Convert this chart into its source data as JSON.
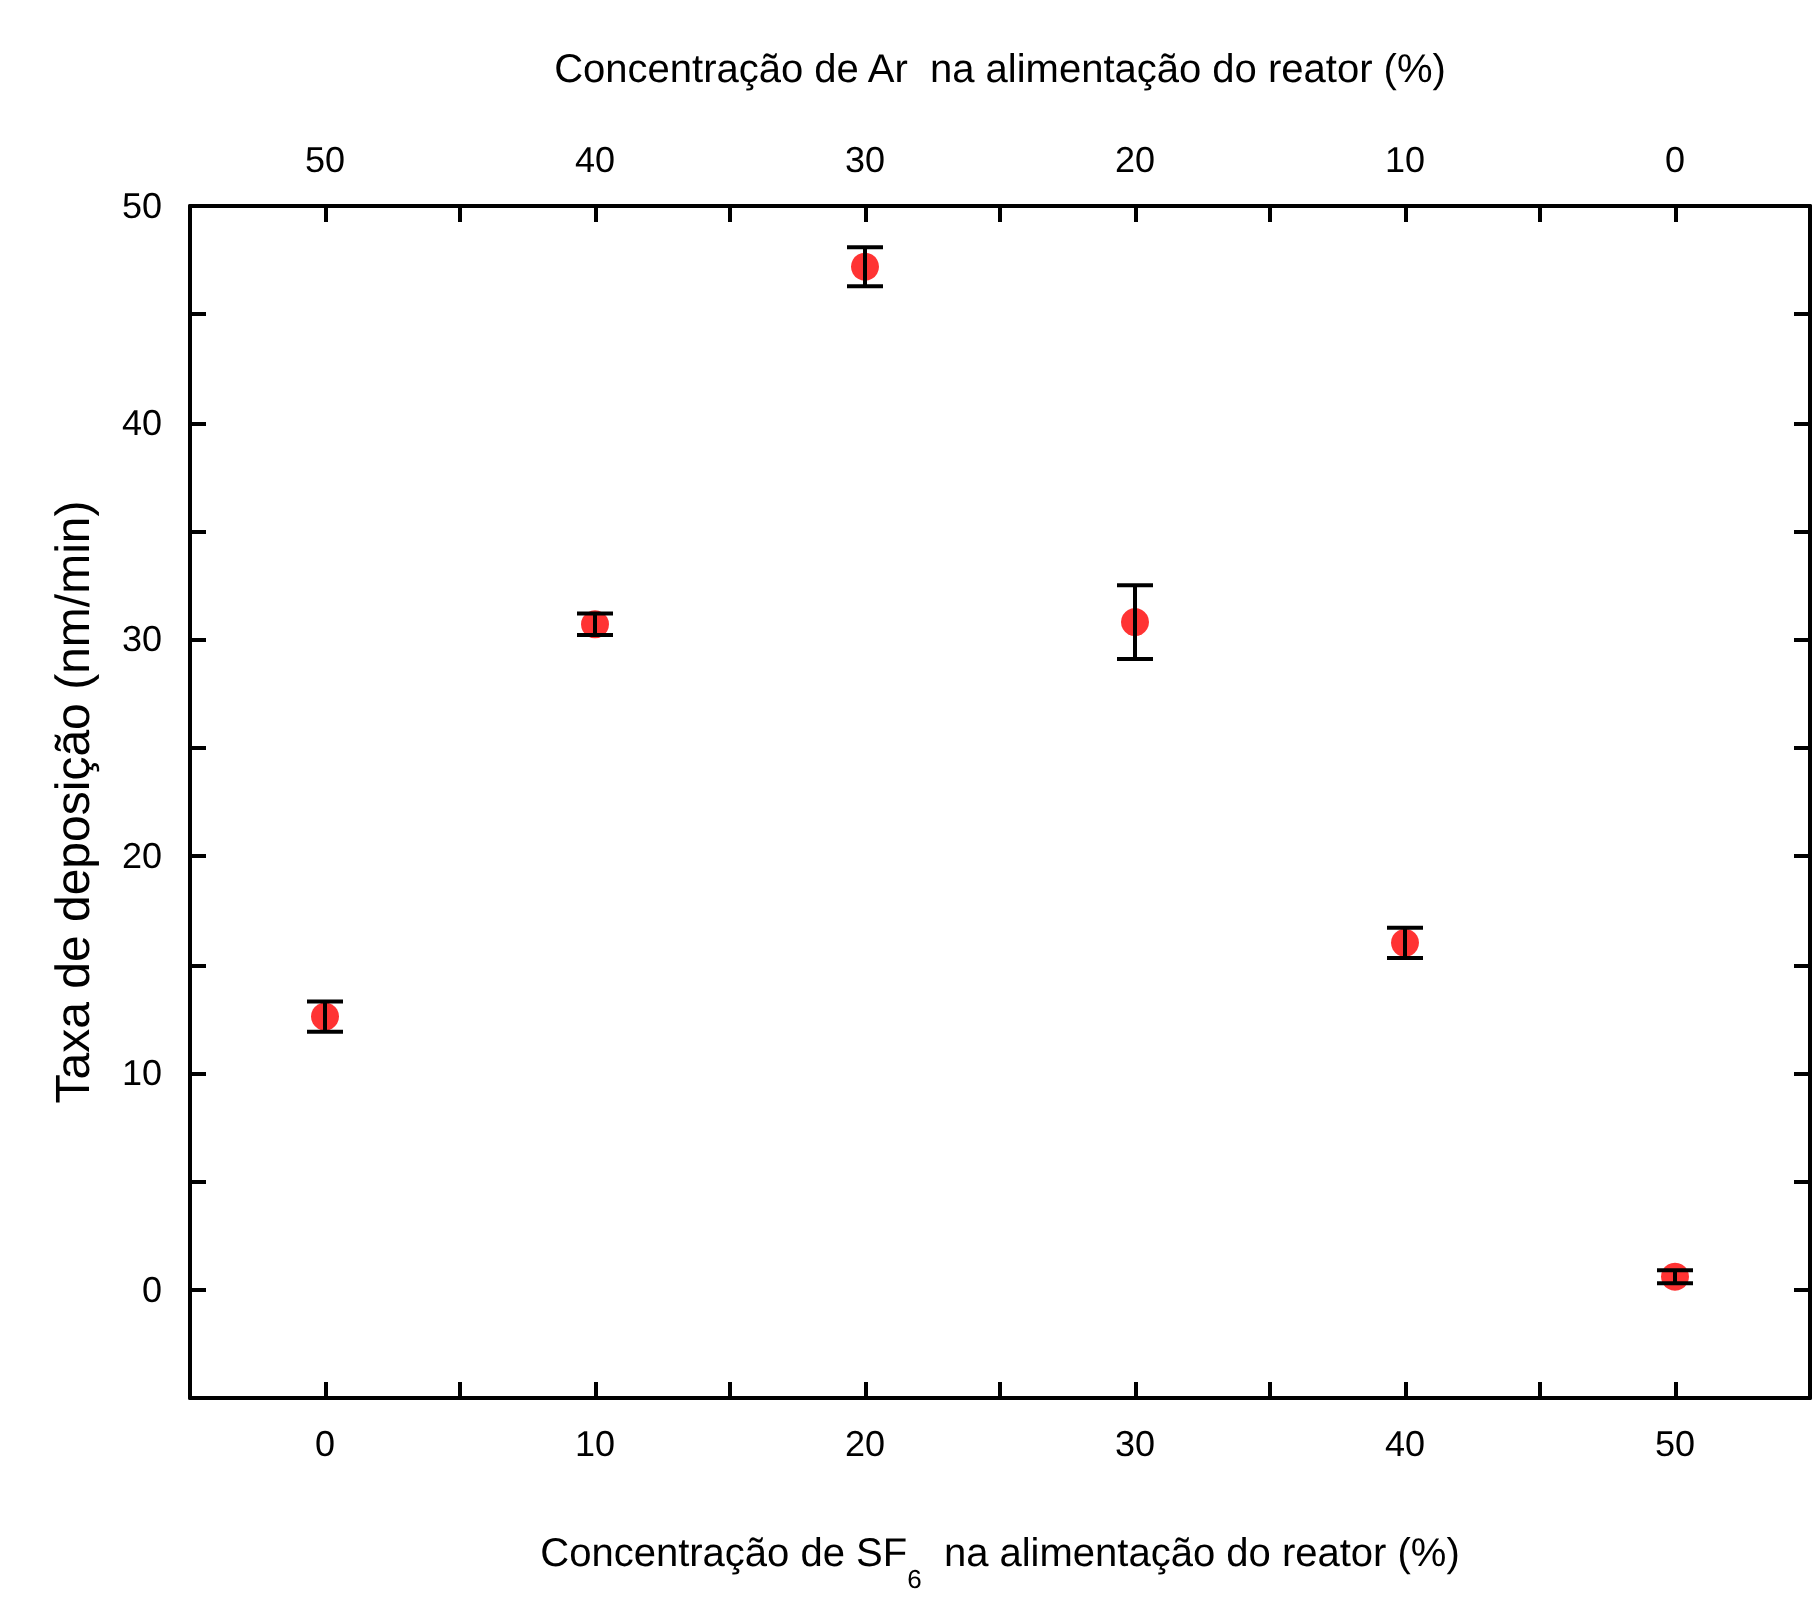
{
  "chart_data": {
    "type": "scatter",
    "xlabel": "Concentração de SF$_{6}$  na alimentação do reator (%)",
    "x2label": "Concentração de Ar  na alimentação do reator (%)",
    "ylabel": "Taxa de deposição (nm/min)",
    "x": [
      0,
      10,
      20,
      30,
      40,
      50
    ],
    "series": [
      {
        "color": "#ff0000",
        "values": [
          12.6,
          30.7,
          47.2,
          30.8,
          16.0,
          0.6
        ],
        "errors": [
          0.7,
          0.5,
          0.9,
          1.7,
          0.7,
          0.3
        ]
      }
    ],
    "marker": "circle",
    "xlim": [
      -5,
      55
    ],
    "xticks": [
      0,
      {
        "value": 5,
        "label": null
      },
      10,
      {
        "value": 15,
        "label": null
      },
      20,
      {
        "value": 25,
        "label": null
      },
      30,
      {
        "value": 35,
        "label": null
      },
      40,
      {
        "value": 45,
        "label": null
      },
      50,
      {
        "value": 55,
        "label": null
      }
    ],
    "x2lim": [
      55,
      -5
    ],
    "x2ticks": [
      50,
      {
        "value": 45,
        "label": null
      },
      40,
      {
        "value": 35,
        "label": null
      },
      30,
      {
        "value": 25,
        "label": null
      },
      20,
      {
        "value": 15,
        "label": null
      },
      10,
      {
        "value": 5,
        "label": null
      },
      0
    ],
    "ylim": [
      -5,
      50
    ],
    "yticks": [
      0,
      {
        "value": 5,
        "label": null
      },
      10,
      {
        "value": 15,
        "label": null
      },
      20,
      {
        "value": 25,
        "label": null
      },
      30,
      {
        "value": 35,
        "label": null
      },
      40,
      {
        "value": 45,
        "label": null
      },
      50
    ]
  }
}
